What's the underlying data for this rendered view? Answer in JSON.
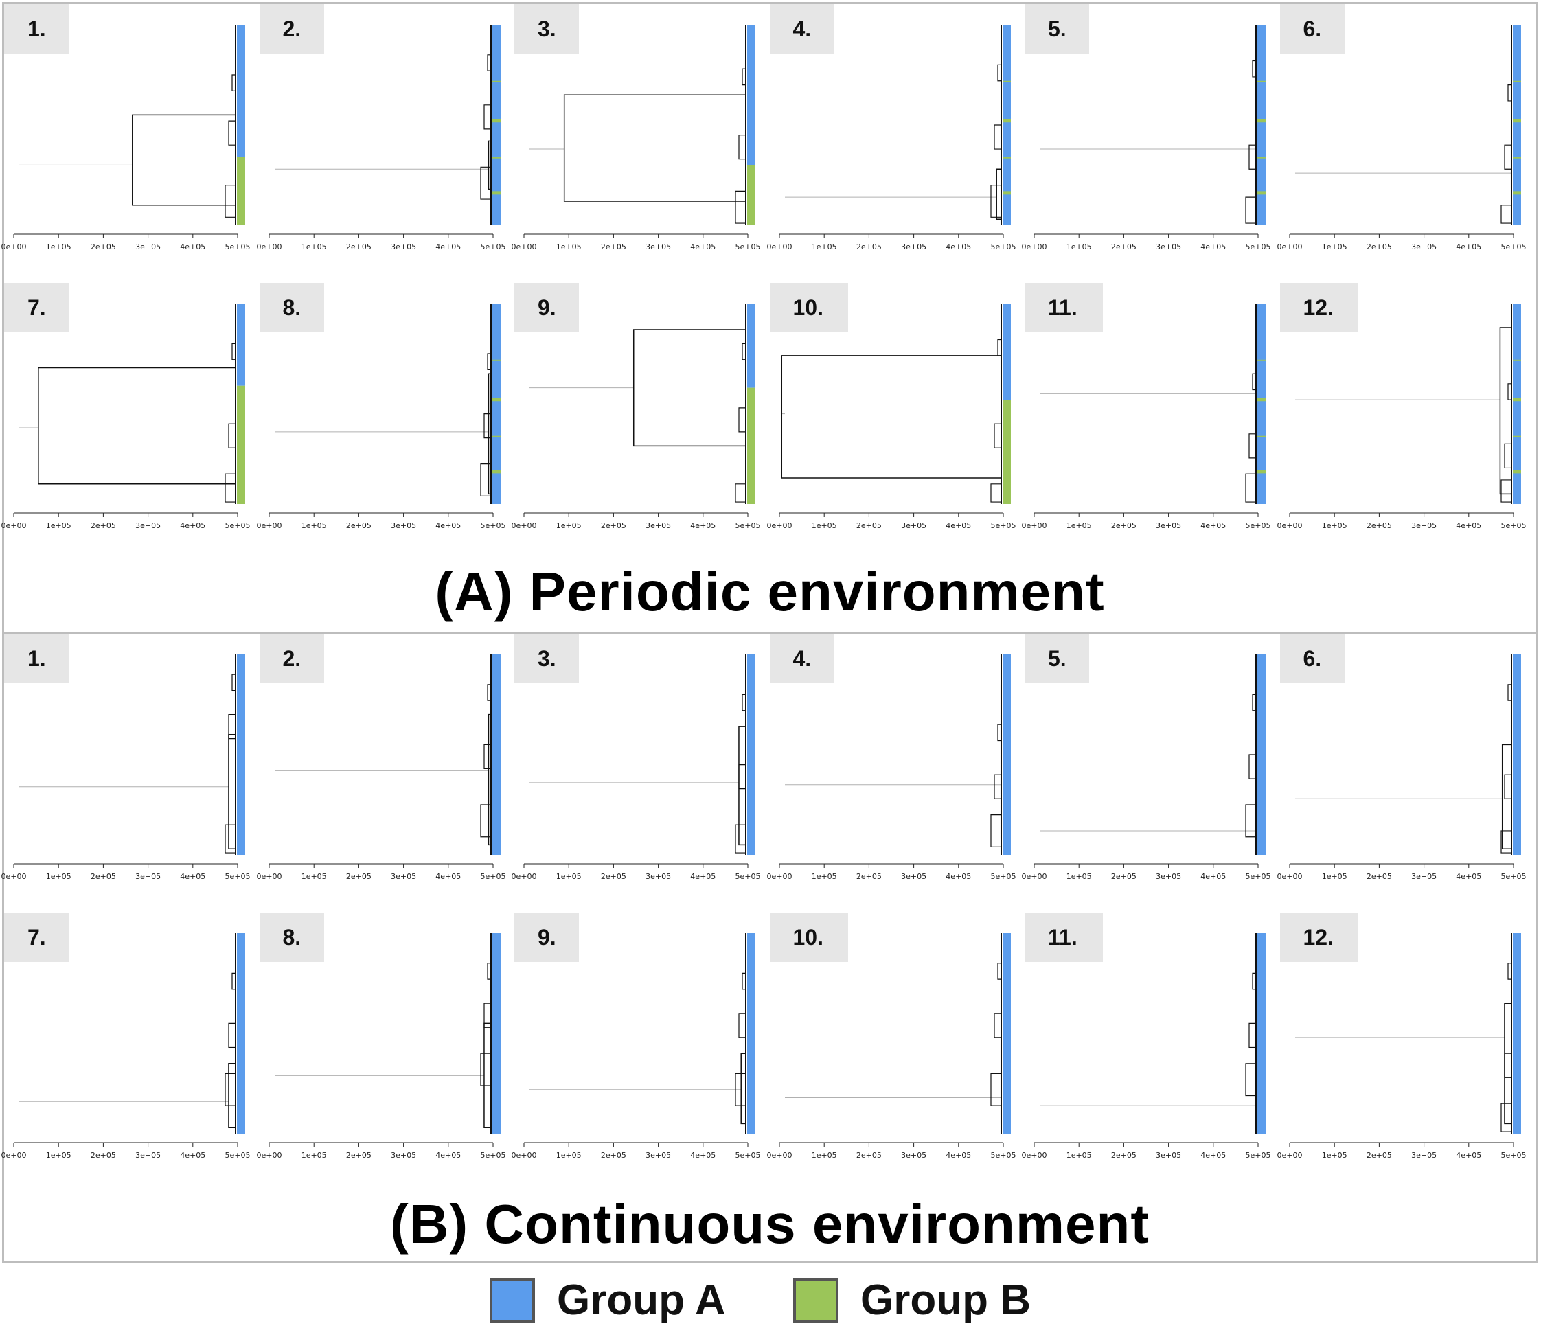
{
  "sections": [
    {
      "id": "A",
      "title": "(A) Periodic environment",
      "panels": [
        {
          "label": "1.",
          "rootY": 0.7,
          "joinX": 265000.0,
          "topY": 0.45,
          "botY": 0.9,
          "split": 0.66,
          "minor": [
            0.25,
            0.48,
            0.8
          ]
        },
        {
          "label": "2.",
          "rootY": 0.72,
          "joinX": 490000.0,
          "topY": 0.58,
          "botY": 0.82,
          "split": null,
          "minor": [
            0.15,
            0.4,
            0.71
          ]
        },
        {
          "label": "3.",
          "rootY": 0.62,
          "joinX": 90000.0,
          "topY": 0.35,
          "botY": 0.88,
          "split": 0.7,
          "minor": [
            0.22,
            0.55,
            0.83
          ]
        },
        {
          "label": "4.",
          "rootY": 0.86,
          "joinX": 485000.0,
          "topY": 0.72,
          "botY": 0.97,
          "split": null,
          "minor": [
            0.2,
            0.5,
            0.8
          ]
        },
        {
          "label": "5.",
          "rootY": 0.62,
          "joinX": 495000.0,
          "topY": 0.3,
          "botY": 0.9,
          "split": null,
          "minor": [
            0.18,
            0.6,
            0.86
          ]
        },
        {
          "label": "6.",
          "rootY": 0.74,
          "joinX": 495000.0,
          "topY": 0.5,
          "botY": 0.98,
          "split": null,
          "minor": [
            0.3,
            0.6,
            0.9
          ]
        },
        {
          "label": "7.",
          "rootY": 0.62,
          "joinX": 55000.0,
          "topY": 0.32,
          "botY": 0.9,
          "split": 0.41,
          "minor": [
            0.2,
            0.6,
            0.85
          ]
        },
        {
          "label": "8.",
          "rootY": 0.64,
          "joinX": 490000.0,
          "topY": 0.35,
          "botY": 0.95,
          "split": null,
          "minor": [
            0.25,
            0.55,
            0.8
          ]
        },
        {
          "label": "9.",
          "rootY": 0.42,
          "joinX": 245000.0,
          "topY": 0.13,
          "botY": 0.71,
          "split": 0.42,
          "minor": [
            0.2,
            0.52,
            0.9
          ]
        },
        {
          "label": "10.",
          "rootY": 0.55,
          "joinX": 5000.0,
          "topY": 0.26,
          "botY": 0.87,
          "split": 0.48,
          "minor": [
            0.18,
            0.6,
            0.9
          ]
        },
        {
          "label": "11.",
          "rootY": 0.45,
          "joinX": 495000.0,
          "topY": 0.2,
          "botY": 0.95,
          "split": null,
          "minor": [
            0.35,
            0.65,
            0.85
          ]
        },
        {
          "label": "12.",
          "rootY": 0.48,
          "joinX": 470000.0,
          "topY": 0.12,
          "botY": 0.95,
          "split": null,
          "minor": [
            0.4,
            0.7,
            0.88
          ]
        }
      ]
    },
    {
      "id": "B",
      "title": "(B) Continuous environment",
      "panels": [
        {
          "label": "1.",
          "rootY": 0.66,
          "joinX": 480000.0,
          "topY": 0.4,
          "botY": 0.97,
          "split": null,
          "minor": [
            0.1,
            0.3,
            0.85
          ]
        },
        {
          "label": "2.",
          "rootY": 0.58,
          "joinX": 490000.0,
          "topY": 0.3,
          "botY": 0.95,
          "split": null,
          "minor": [
            0.15,
            0.45,
            0.75
          ]
        },
        {
          "label": "3.",
          "rootY": 0.64,
          "joinX": 480000.0,
          "topY": 0.36,
          "botY": 0.95,
          "split": null,
          "minor": [
            0.2,
            0.55,
            0.85
          ]
        },
        {
          "label": "4.",
          "rootY": 0.65,
          "joinX": 495000.0,
          "topY": 0.15,
          "botY": 0.92,
          "split": null,
          "minor": [
            0.35,
            0.6,
            0.8
          ]
        },
        {
          "label": "5.",
          "rootY": 0.88,
          "joinX": 495000.0,
          "topY": 0.8,
          "botY": 0.97,
          "split": null,
          "minor": [
            0.2,
            0.5,
            0.75
          ]
        },
        {
          "label": "6.",
          "rootY": 0.72,
          "joinX": 475000.0,
          "topY": 0.45,
          "botY": 0.97,
          "split": null,
          "minor": [
            0.15,
            0.6,
            0.88
          ]
        },
        {
          "label": "7.",
          "rootY": 0.84,
          "joinX": 480000.0,
          "topY": 0.65,
          "botY": 0.97,
          "split": null,
          "minor": [
            0.2,
            0.45,
            0.7
          ]
        },
        {
          "label": "8.",
          "rootY": 0.71,
          "joinX": 480000.0,
          "topY": 0.45,
          "botY": 0.97,
          "split": null,
          "minor": [
            0.15,
            0.35,
            0.6
          ]
        },
        {
          "label": "9.",
          "rootY": 0.78,
          "joinX": 485000.0,
          "topY": 0.6,
          "botY": 0.95,
          "split": null,
          "minor": [
            0.2,
            0.4,
            0.7
          ]
        },
        {
          "label": "10.",
          "rootY": 0.82,
          "joinX": 495000.0,
          "topY": 0.55,
          "botY": 0.95,
          "split": null,
          "minor": [
            0.15,
            0.4,
            0.7
          ]
        },
        {
          "label": "11.",
          "rootY": 0.86,
          "joinX": 495000.0,
          "topY": 0.75,
          "botY": 0.97,
          "split": null,
          "minor": [
            0.2,
            0.45,
            0.65
          ]
        },
        {
          "label": "12.",
          "rootY": 0.52,
          "joinX": 480000.0,
          "topY": 0.35,
          "botY": 0.95,
          "split": null,
          "minor": [
            0.15,
            0.6,
            0.85
          ]
        }
      ]
    }
  ],
  "legend": [
    {
      "label": "Group A",
      "color": "#5b9cec"
    },
    {
      "label": "Group B",
      "color": "#9bc559"
    }
  ],
  "chart_data": {
    "type": "dendrogram",
    "xlim": [
      0,
      500000
    ],
    "xticks": [
      "0e+00",
      "1e+05",
      "2e+05",
      "3e+05",
      "4e+05",
      "5e+05"
    ],
    "colors": {
      "groupA": "#5b9cec",
      "groupB": "#9bc559"
    }
  }
}
